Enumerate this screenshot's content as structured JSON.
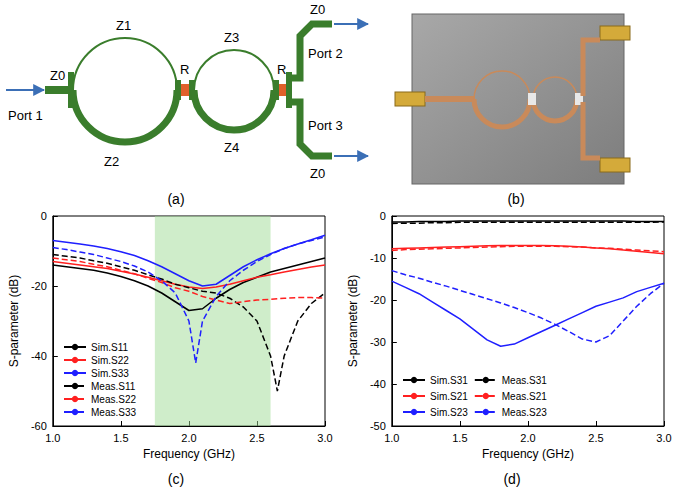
{
  "panels": [
    "(a)",
    "(b)",
    "(c)",
    "(d)"
  ],
  "diagram": {
    "labels": [
      "Z0",
      "Port 1",
      "Z1",
      "Z2",
      "R",
      "Z3",
      "Z4",
      "R",
      "Z0",
      "Port 2",
      "Z0",
      "Port 3"
    ]
  },
  "chart_data": [
    {
      "type": "line",
      "xlabel": "Frequency (GHz)",
      "ylabel": "S-parameter (dB)",
      "xlim": [
        1,
        3
      ],
      "xticks": [
        {
          "value": 1,
          "label": "1.0"
        },
        {
          "value": 1.5,
          "label": "1.5"
        },
        {
          "value": 2,
          "label": "2.0"
        },
        {
          "value": 2.5,
          "label": "2.5"
        },
        {
          "value": 3,
          "label": "3.0"
        }
      ],
      "ylim": [
        -60,
        0
      ],
      "yticks": [
        -60,
        -40,
        -20,
        0
      ],
      "grid": false,
      "legend": "lower left",
      "marker": "none",
      "highlight": [
        1.75,
        2.6
      ],
      "series": [
        {
          "name": "Sim.S11",
          "color": "#000000",
          "line_style": "solid",
          "x": [
            1.0,
            1.1,
            1.2,
            1.3,
            1.4,
            1.5,
            1.6,
            1.7,
            1.8,
            1.9,
            2.0,
            2.1,
            2.2,
            2.3,
            2.4,
            2.5,
            2.6,
            2.7,
            2.8,
            2.9,
            3.0
          ],
          "values": [
            -14,
            -14.5,
            -15,
            -15.5,
            -16.3,
            -17.3,
            -18.5,
            -20,
            -22,
            -24.5,
            -27,
            -26.5,
            -23.5,
            -21,
            -19,
            -17.5,
            -16,
            -15,
            -14,
            -13,
            -12
          ]
        },
        {
          "name": "Sim.S22",
          "color": "#ff2020",
          "line_style": "solid",
          "x": [
            1.0,
            1.1,
            1.2,
            1.3,
            1.4,
            1.5,
            1.6,
            1.7,
            1.8,
            1.9,
            2.0,
            2.1,
            2.2,
            2.3,
            2.4,
            2.5,
            2.6,
            2.7,
            2.8,
            2.9,
            3.0
          ],
          "values": [
            -13,
            -13.5,
            -14,
            -14.5,
            -15,
            -15.8,
            -16.6,
            -17.5,
            -18.5,
            -19.5,
            -20.3,
            -20.7,
            -20.3,
            -19.5,
            -18.5,
            -17.5,
            -16.8,
            -16,
            -15.3,
            -14.6,
            -14
          ]
        },
        {
          "name": "Sim.S33",
          "color": "#1f1fff",
          "line_style": "solid",
          "x": [
            1.0,
            1.1,
            1.2,
            1.3,
            1.4,
            1.5,
            1.6,
            1.7,
            1.8,
            1.9,
            2.0,
            2.1,
            2.2,
            2.3,
            2.4,
            2.5,
            2.6,
            2.7,
            2.8,
            2.9,
            3.0
          ],
          "values": [
            -7,
            -7.5,
            -8,
            -8.6,
            -9.3,
            -10.2,
            -11.3,
            -12.8,
            -14.5,
            -16.5,
            -18.5,
            -20,
            -19.5,
            -17,
            -14.5,
            -12.5,
            -10.8,
            -9.3,
            -8,
            -6.8,
            -5.5
          ]
        },
        {
          "name": "Meas.S11",
          "color": "#000000",
          "line_style": "dashed",
          "x": [
            1.0,
            1.1,
            1.2,
            1.3,
            1.4,
            1.5,
            1.6,
            1.7,
            1.8,
            1.9,
            2.0,
            2.1,
            2.2,
            2.3,
            2.4,
            2.5,
            2.6,
            2.65,
            2.7,
            2.8,
            2.9,
            3.0
          ],
          "values": [
            -11,
            -11.5,
            -12,
            -12.8,
            -13.5,
            -14.5,
            -15.5,
            -16.8,
            -18,
            -19.5,
            -20.5,
            -21.5,
            -22,
            -23.5,
            -26,
            -30,
            -40,
            -50,
            -40,
            -30,
            -25,
            -22
          ]
        },
        {
          "name": "Meas.S22",
          "color": "#ff2020",
          "line_style": "dashed",
          "x": [
            1.0,
            1.1,
            1.2,
            1.3,
            1.4,
            1.5,
            1.6,
            1.7,
            1.8,
            1.9,
            2.0,
            2.1,
            2.2,
            2.3,
            2.4,
            2.5,
            2.6,
            2.7,
            2.8,
            2.9,
            3.0
          ],
          "values": [
            -12,
            -12.5,
            -13,
            -13.8,
            -14.5,
            -15.5,
            -16.5,
            -17.8,
            -19,
            -20.5,
            -21.5,
            -23,
            -24,
            -25,
            -24.5,
            -24,
            -23.8,
            -23.5,
            -23.3,
            -23.3,
            -23.5
          ]
        },
        {
          "name": "Meas.S33",
          "color": "#1f1fff",
          "line_style": "dashed",
          "x": [
            1.0,
            1.1,
            1.2,
            1.3,
            1.4,
            1.5,
            1.6,
            1.7,
            1.8,
            1.9,
            2.0,
            2.05,
            2.1,
            2.2,
            2.3,
            2.4,
            2.5,
            2.6,
            2.7,
            2.8,
            2.9,
            3.0
          ],
          "values": [
            -9,
            -9.6,
            -10.3,
            -11,
            -12,
            -13,
            -14.3,
            -16,
            -18.5,
            -22,
            -30,
            -42,
            -30,
            -23,
            -18.5,
            -15.5,
            -13,
            -11,
            -9.3,
            -8,
            -7,
            -6
          ]
        }
      ]
    },
    {
      "type": "line",
      "xlabel": "Frequency (GHz)",
      "ylabel": "S-parameter (dB)",
      "xlim": [
        1,
        3
      ],
      "xticks": [
        {
          "value": 1,
          "label": "1.0"
        },
        {
          "value": 1.5,
          "label": "1.5"
        },
        {
          "value": 2,
          "label": "2.0"
        },
        {
          "value": 2.5,
          "label": "2.5"
        },
        {
          "value": 3,
          "label": "3.0"
        }
      ],
      "ylim": [
        -50,
        0
      ],
      "yticks": [
        -50,
        -40,
        -30,
        -20,
        -10,
        0
      ],
      "grid": false,
      "legend": "lower left",
      "marker": "none",
      "series": [
        {
          "name": "Sim.S31",
          "color": "#000000",
          "line_style": "solid",
          "x": [
            1.0,
            1.1,
            1.2,
            1.3,
            1.4,
            1.5,
            1.6,
            1.7,
            1.8,
            1.9,
            2.0,
            2.1,
            2.2,
            2.3,
            2.4,
            2.5,
            2.6,
            2.7,
            2.8,
            2.9,
            3.0
          ],
          "values": [
            -1.4,
            -1.4,
            -1.3,
            -1.3,
            -1.3,
            -1.2,
            -1.2,
            -1.2,
            -1.2,
            -1.2,
            -1.2,
            -1.2,
            -1.2,
            -1.2,
            -1.2,
            -1.2,
            -1.2,
            -1.2,
            -1.3,
            -1.3,
            -1.3
          ]
        },
        {
          "name": "Meas.S31",
          "color": "#000000",
          "line_style": "dashed",
          "x": [
            1.0,
            1.1,
            1.2,
            1.3,
            1.4,
            1.5,
            1.6,
            1.7,
            1.8,
            1.9,
            2.0,
            2.1,
            2.2,
            2.3,
            2.4,
            2.5,
            2.6,
            2.7,
            2.8,
            2.9,
            3.0
          ],
          "values": [
            -1.8,
            -1.7,
            -1.7,
            -1.6,
            -1.6,
            -1.5,
            -1.5,
            -1.5,
            -1.5,
            -1.5,
            -1.5,
            -1.5,
            -1.5,
            -1.5,
            -1.5,
            -1.5,
            -1.5,
            -1.5,
            -1.5,
            -1.5,
            -1.4
          ]
        },
        {
          "name": "Sim.S21",
          "color": "#ff2020",
          "line_style": "solid",
          "x": [
            1.0,
            1.1,
            1.2,
            1.3,
            1.4,
            1.5,
            1.6,
            1.7,
            1.8,
            1.9,
            2.0,
            2.1,
            2.2,
            2.3,
            2.4,
            2.5,
            2.6,
            2.7,
            2.8,
            2.9,
            3.0
          ],
          "values": [
            -7.8,
            -7.7,
            -7.6,
            -7.5,
            -7.4,
            -7.3,
            -7.2,
            -7.1,
            -7.0,
            -7.0,
            -7.0,
            -7.0,
            -7.1,
            -7.2,
            -7.4,
            -7.6,
            -7.8,
            -8.1,
            -8.4,
            -8.7,
            -9.0
          ]
        },
        {
          "name": "Meas.S21",
          "color": "#ff2020",
          "line_style": "dashed",
          "x": [
            1.0,
            1.1,
            1.2,
            1.3,
            1.4,
            1.5,
            1.6,
            1.7,
            1.8,
            1.9,
            2.0,
            2.1,
            2.2,
            2.3,
            2.4,
            2.5,
            2.6,
            2.7,
            2.8,
            2.9,
            3.0
          ],
          "values": [
            -8.2,
            -8.0,
            -7.9,
            -7.8,
            -7.7,
            -7.6,
            -7.5,
            -7.4,
            -7.3,
            -7.2,
            -7.2,
            -7.2,
            -7.2,
            -7.3,
            -7.4,
            -7.6,
            -7.7,
            -7.9,
            -8.1,
            -8.3,
            -8.5
          ]
        },
        {
          "name": "Sim.S23",
          "color": "#1f1fff",
          "line_style": "solid",
          "x": [
            1.0,
            1.1,
            1.2,
            1.3,
            1.4,
            1.5,
            1.6,
            1.7,
            1.8,
            1.9,
            2.0,
            2.1,
            2.2,
            2.3,
            2.4,
            2.5,
            2.6,
            2.7,
            2.8,
            2.9,
            3.0
          ],
          "values": [
            -15.5,
            -17,
            -18.5,
            -20.5,
            -22.5,
            -24.5,
            -27,
            -29.5,
            -31,
            -30.5,
            -29,
            -27.5,
            -26,
            -24.5,
            -23,
            -21.5,
            -20.5,
            -19.5,
            -18,
            -17,
            -16
          ]
        },
        {
          "name": "Meas.S23",
          "color": "#1f1fff",
          "line_style": "dashed",
          "x": [
            1.0,
            1.1,
            1.2,
            1.3,
            1.4,
            1.5,
            1.6,
            1.7,
            1.8,
            1.9,
            2.0,
            2.1,
            2.2,
            2.3,
            2.4,
            2.5,
            2.6,
            2.7,
            2.8,
            2.9,
            3.0
          ],
          "values": [
            -13,
            -14,
            -14.8,
            -15.8,
            -16.7,
            -17.7,
            -18.7,
            -19.7,
            -20.7,
            -21.8,
            -23,
            -24.3,
            -25.8,
            -27.5,
            -29.3,
            -30,
            -28.5,
            -25,
            -21.5,
            -18.5,
            -16
          ]
        }
      ]
    }
  ]
}
